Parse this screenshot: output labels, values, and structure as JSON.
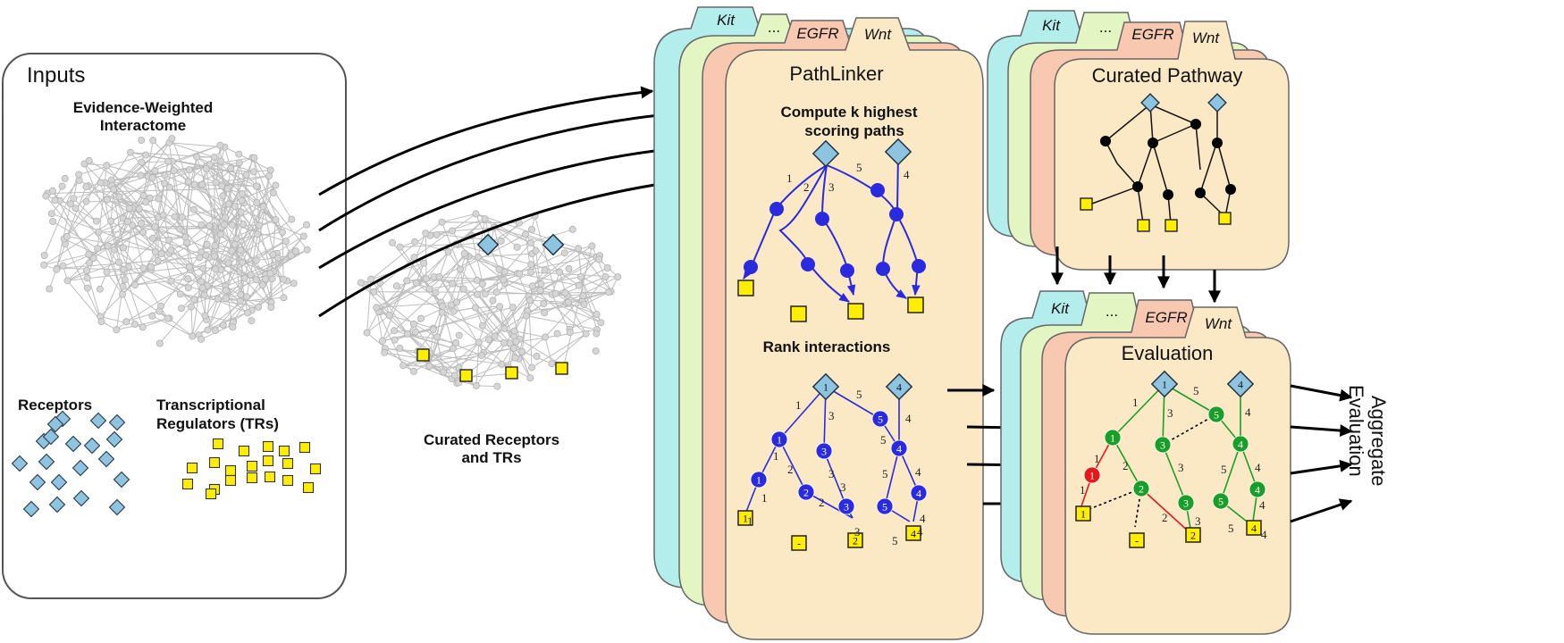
{
  "inputs": {
    "title": "Inputs",
    "interactome_line1": "Evidence-Weighted",
    "interactome_line2": "Interactome",
    "receptors": "Receptors",
    "trs_line1": "Transcriptional",
    "trs_line2": "Regulators (TRs)"
  },
  "curated_receptors": {
    "line1": "Curated Receptors",
    "line2": "and TRs"
  },
  "tabs": [
    "Kit",
    "...",
    "EGFR",
    "Wnt"
  ],
  "pathlinker": {
    "title": "PathLinker",
    "step1_line1": "Compute k highest",
    "step1_line2": "scoring paths",
    "step2": "Rank interactions",
    "top_edge_labels": [
      "1",
      "2",
      "3",
      "5",
      "4"
    ],
    "rank_labels": [
      "1",
      "1",
      "1",
      "1",
      "2",
      "2",
      "3",
      "3",
      "3",
      "3",
      "5",
      "5",
      "5",
      "5",
      "4",
      "4",
      "4",
      "4"
    ],
    "node_ranks": [
      "1",
      "4",
      "1",
      "3",
      "5",
      "1",
      "4",
      "2",
      "3",
      "5",
      "4"
    ],
    "target_ranks": [
      "1",
      "-",
      "2",
      "4"
    ]
  },
  "curated_pathway": {
    "title": "Curated Pathway"
  },
  "evaluation": {
    "title": "Evaluation",
    "edge_labels": [
      "1",
      "5",
      "3",
      "4",
      "1",
      "2",
      "3",
      "4",
      "5",
      "1",
      "2",
      "3",
      "4",
      "5",
      "4"
    ],
    "node_ranks": [
      "1",
      "4",
      "1",
      "3",
      "5",
      "1",
      "4",
      "2",
      "3",
      "5",
      "4"
    ],
    "target_ranks": [
      "1",
      "-",
      "2",
      "4"
    ]
  },
  "aggregate": {
    "line1": "Aggregate",
    "line2": "Evaluation"
  },
  "colors": {
    "kit_tab": "#b3eeec",
    "dots_tab": "#e3f5c3",
    "egfr_tab": "#f9c8b0",
    "wnt_tab": "#fbe9c6",
    "receptor": "#8ec4e0",
    "tr": "#ffee00",
    "path_blue": "#2a2adf",
    "eval_green": "#1a9e2a",
    "eval_red": "#e21a1a"
  }
}
